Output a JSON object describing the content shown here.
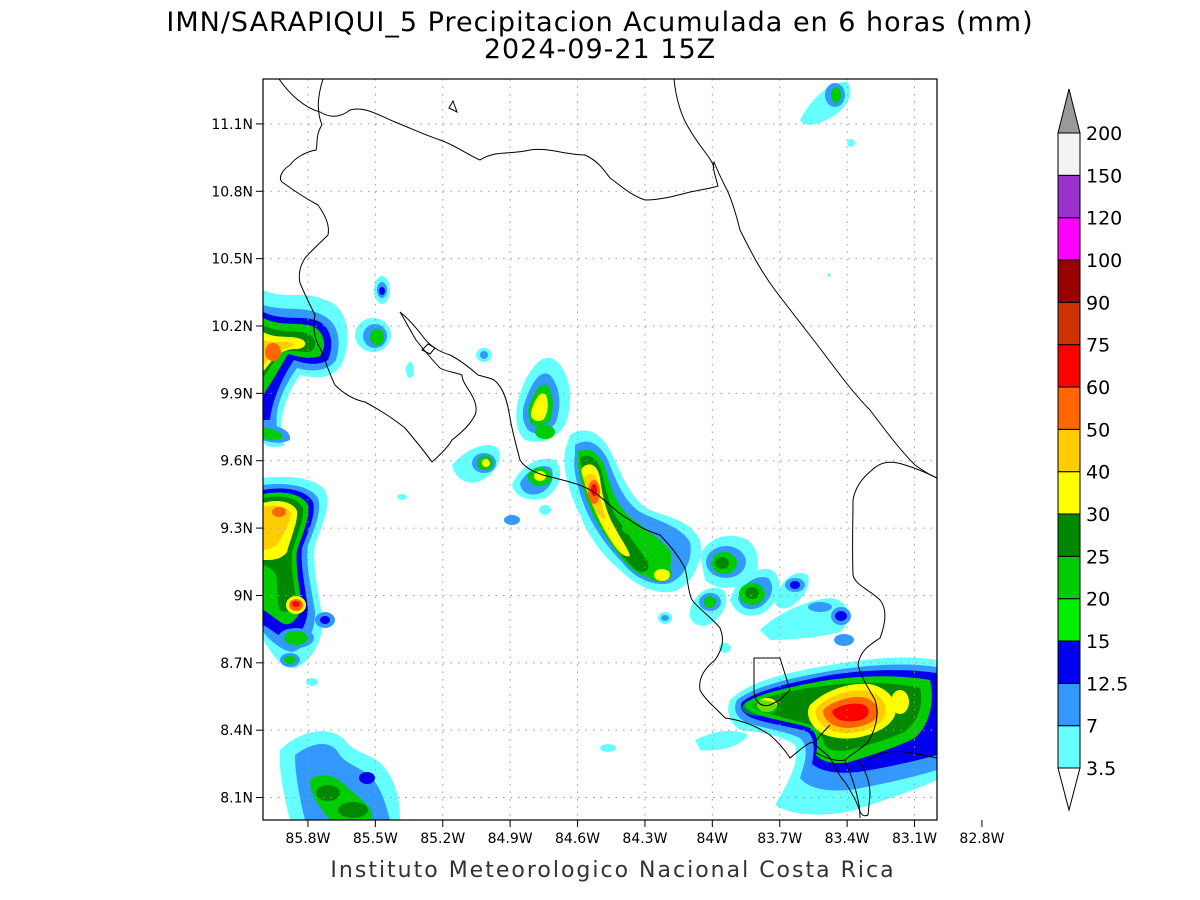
{
  "title": "IMN/SARAPIQUI_5 Precipitacion Acumulada en 6 horas (mm)",
  "subtitle": "2024-09-21 15Z",
  "footer": "Instituto Meteorologico Nacional Costa Rica",
  "map": {
    "lon_range": [
      -86.0,
      -83.0
    ],
    "lat_range": [
      8.0,
      11.3
    ],
    "lon_ticks": [
      {
        "value": -85.8,
        "label": "85.8W"
      },
      {
        "value": -85.5,
        "label": "85.5W"
      },
      {
        "value": -85.2,
        "label": "85.2W"
      },
      {
        "value": -84.9,
        "label": "84.9W"
      },
      {
        "value": -84.6,
        "label": "84.6W"
      },
      {
        "value": -84.3,
        "label": "84.3W"
      },
      {
        "value": -84.0,
        "label": "84W"
      },
      {
        "value": -83.7,
        "label": "83.7W"
      },
      {
        "value": -83.4,
        "label": "83.4W"
      },
      {
        "value": -83.1,
        "label": "83.1W"
      },
      {
        "value": -82.8,
        "label": "82.8W"
      }
    ],
    "lat_ticks": [
      {
        "value": 8.1,
        "label": "8.1N"
      },
      {
        "value": 8.4,
        "label": "8.4N"
      },
      {
        "value": 8.7,
        "label": "8.7N"
      },
      {
        "value": 9.0,
        "label": "9N"
      },
      {
        "value": 9.3,
        "label": "9.3N"
      },
      {
        "value": 9.6,
        "label": "9.6N"
      },
      {
        "value": 9.9,
        "label": "9.9N"
      },
      {
        "value": 10.2,
        "label": "10.2N"
      },
      {
        "value": 10.5,
        "label": "10.5N"
      },
      {
        "value": 10.8,
        "label": "10.8N"
      },
      {
        "value": 11.1,
        "label": "11.1N"
      }
    ],
    "gridlines": true
  },
  "colorbar": {
    "levels": [
      "3.5",
      "7",
      "12.5",
      "15",
      "20",
      "25",
      "30",
      "40",
      "50",
      "60",
      "75",
      "90",
      "100",
      "120",
      "150",
      "200"
    ],
    "colors": [
      "#66ffff",
      "#3399ff",
      "#0000ee",
      "#00ee00",
      "#00cc00",
      "#008800",
      "#ffff00",
      "#ffcc00",
      "#ff6600",
      "#ff0000",
      "#cc3300",
      "#990000",
      "#ff00ff",
      "#9933cc",
      "#f2f2f2"
    ],
    "over_color": "#999999",
    "under_color": "#ffffff"
  }
}
